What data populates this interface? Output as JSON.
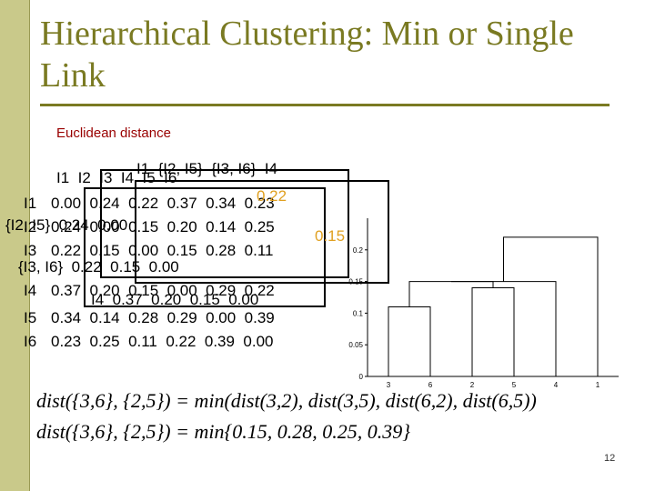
{
  "slide": {
    "title": "Hierarchical Clustering: Min or Single Link",
    "subtitle": "Euclidean distance",
    "page_number": "12",
    "accent": "#7a7a22",
    "highlight": "#e0a020"
  },
  "matrix": {
    "header": "I1  I2  I3  I4  I5  I6",
    "rows": [
      {
        "label": "I1",
        "values": "0.00  0.24  0.22  0.37  0.34  0.23"
      },
      {
        "label": "I2",
        "values": "0.24  0.00  0.15  0.20  0.14  0.25"
      },
      {
        "label": "I3",
        "values": "0.22  0.15  0.00  0.15  0.28  0.11"
      },
      {
        "label": "I4",
        "values": "0.37  0.20  0.15  0.00  0.29  0.22"
      },
      {
        "label": "I5",
        "values": "0.34  0.14  0.28  0.29  0.00  0.39"
      },
      {
        "label": "I6",
        "values": "0.23  0.25  0.11  0.22  0.39  0.00"
      }
    ]
  },
  "overlays": {
    "a": "I1  {I2, I5}  {I3, I6}  I4",
    "b": "{I2, I5}  0.24  0.00",
    "c": "{I3, I6}  0.22  0.15  0.00",
    "d": "0.22",
    "e": "0.15",
    "f": "I4  0.37  0.20  0.15  0.00"
  },
  "chart_data": {
    "type": "dendrogram",
    "leaves": [
      "3",
      "6",
      "2",
      "5",
      "4",
      "1"
    ],
    "ylim": [
      0,
      0.25
    ],
    "yticks": [
      "0",
      "0.05",
      "0.1",
      "0.15",
      "0.2"
    ],
    "merges": [
      {
        "left": "3",
        "right": "6",
        "height": 0.11
      },
      {
        "left": "2",
        "right": "5",
        "height": 0.14
      },
      {
        "left": "{3,6}",
        "right": "{2,5}",
        "height": 0.15
      },
      {
        "left": "{3,6,2,5}",
        "right": "4",
        "height": 0.15
      },
      {
        "left": "{3,6,2,5,4}",
        "right": "1",
        "height": 0.22
      }
    ]
  },
  "formulas": {
    "line1": "dist({3,6}, {2,5}) = min(dist(3,2), dist(3,5), dist(6,2), dist(6,5))",
    "line2": "dist({3,6}, {2,5}) = min{0.15, 0.28, 0.25, 0.39}"
  }
}
